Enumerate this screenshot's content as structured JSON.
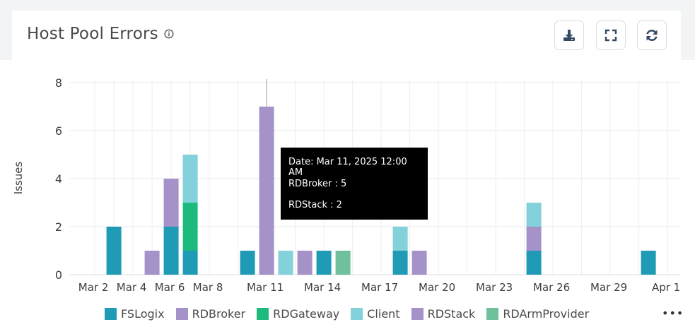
{
  "header": {
    "title": "Host Pool Errors",
    "icons": [
      "info-icon",
      "download-icon",
      "fullscreen-icon",
      "refresh-icon"
    ]
  },
  "legend": {
    "items": [
      {
        "label": "FSLogix",
        "color": "#1f9bb6"
      },
      {
        "label": "RDBroker",
        "color": "#a592c9"
      },
      {
        "label": "RDGateway",
        "color": "#1dba7e"
      },
      {
        "label": "Client",
        "color": "#82d1db"
      },
      {
        "label": "RDStack",
        "color": "#a592c9"
      },
      {
        "label": "RDArmProvider",
        "color": "#6ec19b"
      }
    ],
    "more_label": "•••"
  },
  "tooltip": {
    "date_line": "Date: Mar 11, 2025 12:00 AM",
    "line1": "RDBroker : 5",
    "line2": "RDStack : 2"
  },
  "chart_data": {
    "type": "bar",
    "stacked": true,
    "ylabel": "Issues",
    "ylim": [
      0,
      8
    ],
    "yticks": [
      0,
      2,
      4,
      6,
      8
    ],
    "x_tick_labels": [
      "Mar 2",
      "Mar 4",
      "Mar 6",
      "Mar 8",
      "Mar 11",
      "Mar 14",
      "Mar 17",
      "Mar 20",
      "Mar 23",
      "Mar 26",
      "Mar 29",
      "Apr 1"
    ],
    "dates": [
      "Mar 3",
      "Mar 5",
      "Mar 6",
      "Mar 7",
      "Mar 10",
      "Mar 11",
      "Mar 12",
      "Mar 13",
      "Mar 14",
      "Mar 15",
      "Mar 18",
      "Mar 19",
      "Mar 25",
      "Mar 31"
    ],
    "series": [
      {
        "name": "FSLogix",
        "color": "#1f9bb6",
        "values": [
          2,
          0,
          2,
          1,
          1,
          0,
          0,
          0,
          1,
          0,
          1,
          0,
          1,
          1
        ]
      },
      {
        "name": "RDBroker",
        "color": "#a592c9",
        "values": [
          0,
          1,
          2,
          0,
          0,
          5,
          0,
          1,
          0,
          0,
          0,
          1,
          1,
          0
        ]
      },
      {
        "name": "RDGateway",
        "color": "#1dba7e",
        "values": [
          0,
          0,
          0,
          2,
          0,
          0,
          0,
          0,
          0,
          0,
          0,
          0,
          0,
          0
        ]
      },
      {
        "name": "Client",
        "color": "#82d1db",
        "values": [
          0,
          0,
          0,
          2,
          0,
          0,
          1,
          0,
          0,
          0,
          1,
          0,
          1,
          0
        ]
      },
      {
        "name": "RDStack",
        "color": "#a592c9",
        "values": [
          0,
          0,
          0,
          0,
          0,
          2,
          0,
          0,
          0,
          0,
          0,
          0,
          0,
          0
        ]
      },
      {
        "name": "RDArmProvider",
        "color": "#6ec19b",
        "values": [
          0,
          0,
          0,
          0,
          0,
          0,
          0,
          0,
          0,
          1,
          0,
          0,
          0,
          0
        ]
      }
    ],
    "grid": true,
    "legend_position": "bottom",
    "hover_date": "Mar 11"
  }
}
